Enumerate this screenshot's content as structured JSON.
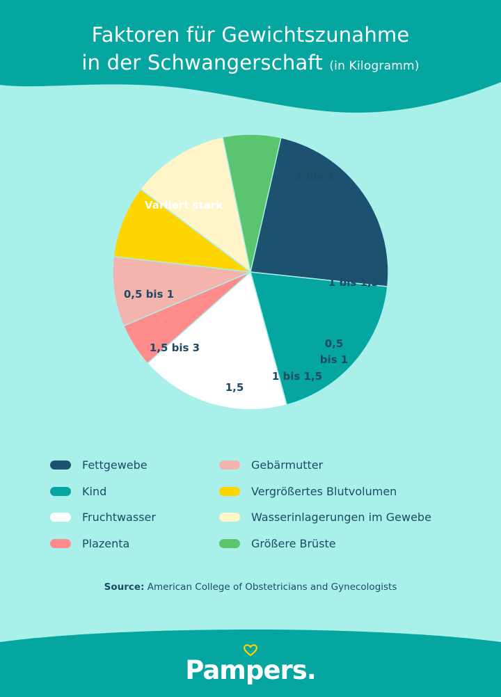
{
  "header": {
    "title_line1": "Faktoren für Gewichtszunahme",
    "title_line2": "in der Schwangerschaft",
    "title_unit": "(in Kilogramm)"
  },
  "colors": {
    "header_bg": "#05a5a0",
    "page_bg": "#aaf0ea",
    "text": "#1d4a64"
  },
  "chart_data": {
    "type": "pie",
    "title": "Faktoren für Gewichtszunahme in der Schwangerschaft (in Kilogramm)",
    "slices": [
      {
        "name": "Fettgewebe",
        "label": "Variiert stark",
        "share": 0.2614,
        "color": "#1c5270",
        "label_color": "#ffffff"
      },
      {
        "name": "Kind",
        "label": "3 bis 4",
        "share": 0.1907,
        "color": "#05a5a0",
        "label_color": "#1d4a64"
      },
      {
        "name": "Fruchtwasser",
        "label": "1 bis 1,5",
        "share": 0.177,
        "color": "#ffffff",
        "label_color": "#1d4a64"
      },
      {
        "name": "Plazenta",
        "label": "0,5 bis 1",
        "share": 0.0514,
        "color": "#ff8c8a",
        "label_color": "#1d4a64"
      },
      {
        "name": "Gebärmutter",
        "label": "1 bis 1,5",
        "share": 0.0818,
        "color": "#f3b4ae",
        "label_color": "#1d4a64"
      },
      {
        "name": "Vergrößertes Blutvolumen",
        "label": "1,5",
        "share": 0.0848,
        "color": "#ffd500",
        "label_color": "#1d4a64"
      },
      {
        "name": "Wasserinlagerungen im Gewebe",
        "label": "1,5 bis 3",
        "share": 0.115,
        "color": "#fff5c8",
        "label_color": "#1d4a64"
      },
      {
        "name": "Größere Brüste",
        "label": "0,5 bis 1",
        "share": 0.0679,
        "color": "#5ac46e",
        "label_color": "#1d4a64"
      }
    ]
  },
  "legend": {
    "left": [
      {
        "label": "Fettgewebe",
        "color": "#1c5270"
      },
      {
        "label": "Kind",
        "color": "#05a5a0"
      },
      {
        "label": "Fruchtwasser",
        "color": "#ffffff"
      },
      {
        "label": "Plazenta",
        "color": "#ff8c8a"
      }
    ],
    "right": [
      {
        "label": "Gebärmutter",
        "color": "#f3b4ae"
      },
      {
        "label": "Vergrößertes Blutvolumen",
        "color": "#ffd500"
      },
      {
        "label": "Wasserinlagerungen im Gewebe",
        "color": "#fff5c8"
      },
      {
        "label": "Größere Brüste",
        "color": "#5ac46e"
      }
    ]
  },
  "source": {
    "prefix": "Source:",
    "text": "American College of Obstetricians and Gynecologists"
  },
  "brand": {
    "name": "Pampers."
  }
}
